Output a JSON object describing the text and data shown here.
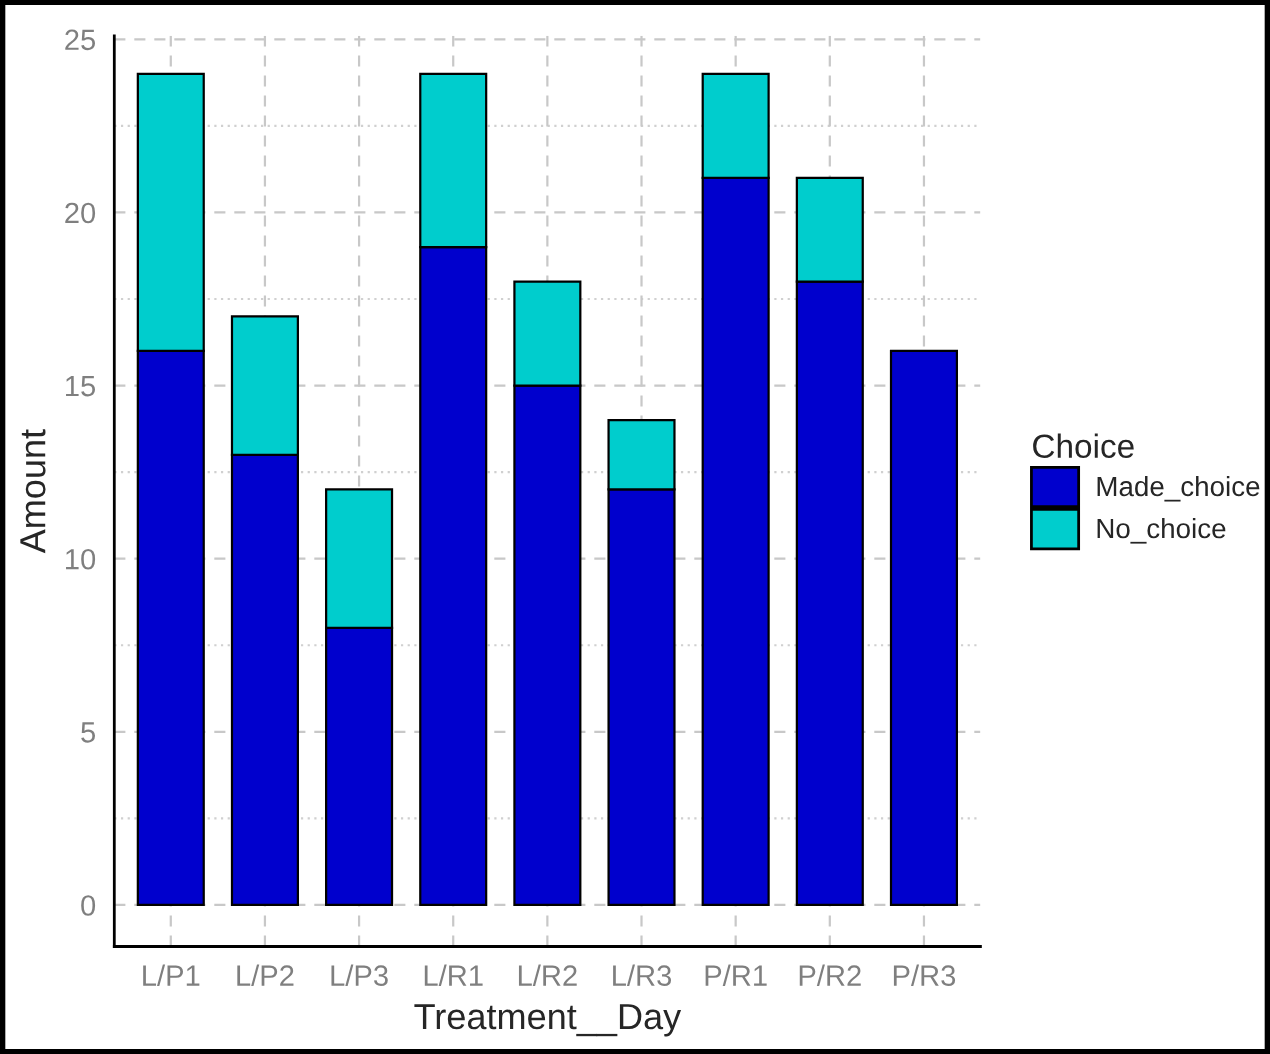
{
  "chart_data": {
    "type": "bar",
    "stacked": true,
    "xlabel": "Treatment__Day",
    "ylabel": "Amount",
    "legend_title": "Choice",
    "legend": "right",
    "categories": [
      "L/P1",
      "L/P2",
      "L/P3",
      "L/R1",
      "L/R2",
      "L/R3",
      "P/R1",
      "P/R2",
      "P/R3"
    ],
    "series": [
      {
        "name": "Made_choice",
        "color": "#0000cd",
        "values": [
          16,
          13,
          8,
          19,
          15,
          12,
          21,
          18,
          16
        ]
      },
      {
        "name": "No_choice",
        "color": "#00cdcd",
        "values": [
          8,
          4,
          4,
          5,
          3,
          2,
          3,
          3,
          null
        ]
      }
    ],
    "ylim": [
      -1.2,
      25.1
    ],
    "yticks": [
      0,
      5,
      10,
      15,
      20,
      25
    ],
    "grid": true
  }
}
